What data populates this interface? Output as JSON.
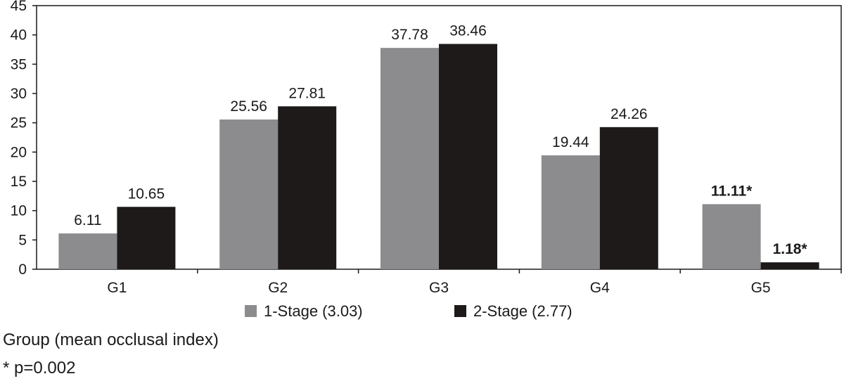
{
  "chart_data": {
    "type": "bar",
    "categories": [
      "G1",
      "G2",
      "G3",
      "G4",
      "G5"
    ],
    "series": [
      {
        "name": "1-Stage (3.03)",
        "values": [
          6.11,
          25.56,
          37.78,
          19.44,
          11.11
        ],
        "labels": [
          "6.11",
          "25.56",
          "37.78",
          "19.44",
          "11.11*"
        ],
        "bold": [
          false,
          false,
          false,
          false,
          true
        ],
        "color": "#8c8c8e"
      },
      {
        "name": "2-Stage (2.77)",
        "values": [
          10.65,
          27.81,
          38.46,
          24.26,
          1.18
        ],
        "labels": [
          "10.65",
          "27.81",
          "38.46",
          "24.26",
          "1.18*"
        ],
        "bold": [
          false,
          false,
          false,
          false,
          true
        ],
        "color": "#1e1a1a"
      }
    ],
    "yticks": [
      0,
      5,
      10,
      15,
      20,
      25,
      30,
      35,
      40,
      45
    ],
    "ylim": [
      0,
      45
    ],
    "xlabel": "Group (mean occlusal index)",
    "ylabel": "",
    "legend_position": "bottom",
    "grid": false,
    "footnote": "* p=0.002"
  }
}
